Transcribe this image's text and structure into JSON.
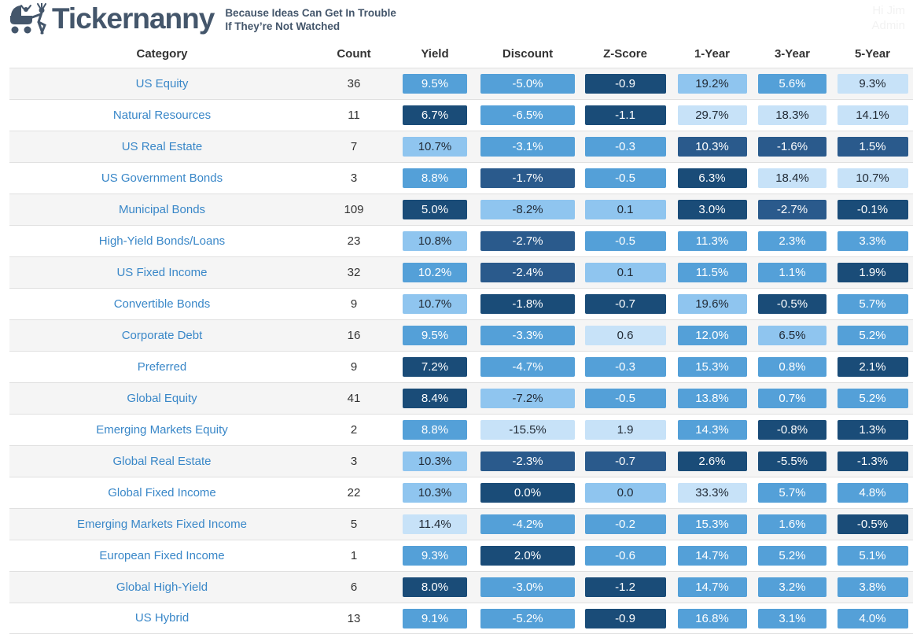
{
  "header": {
    "brand": "Tickernanny",
    "tagline_line1": "Because Ideas Can Get In Trouble",
    "tagline_line2": "If They’re Not Watched",
    "greeting": "Hi Jim",
    "role": "Admin"
  },
  "colors": {
    "shade1": "#c7e2f8",
    "shade2": "#8fc5ef",
    "shade3": "#54a0d8",
    "shade4": "#2a5a8c",
    "shade5": "#1a4c78",
    "pill_text_dark": "#222b36",
    "pill_text_light": "#ffffff",
    "link_blue": "#3987c8",
    "brand_slate": "#44566b"
  },
  "chart_data": {
    "type": "table",
    "title": "Tickernanny category heatmap table",
    "columns": [
      "Category",
      "Count",
      "Yield",
      "Discount",
      "Z-Score",
      "1-Year",
      "3-Year",
      "5-Year"
    ],
    "note": "shade scale 1=lightest blue .. 5=darkest navy"
  },
  "table": {
    "columns": [
      {
        "label": "Category"
      },
      {
        "label": "Count"
      },
      {
        "label": "Yield"
      },
      {
        "label": "Discount"
      },
      {
        "label": "Z-Score"
      },
      {
        "label": "1-Year"
      },
      {
        "label": "3-Year"
      },
      {
        "label": "5-Year"
      }
    ],
    "rows": [
      {
        "category": "US Equity",
        "count": "36",
        "metrics": [
          {
            "v": "9.5%",
            "s": 3
          },
          {
            "v": "-5.0%",
            "s": 3
          },
          {
            "v": "-0.9",
            "s": 5
          },
          {
            "v": "19.2%",
            "s": 2
          },
          {
            "v": "5.6%",
            "s": 3
          },
          {
            "v": "9.3%",
            "s": 1
          }
        ]
      },
      {
        "category": "Natural Resources",
        "count": "11",
        "metrics": [
          {
            "v": "6.7%",
            "s": 5
          },
          {
            "v": "-6.5%",
            "s": 3
          },
          {
            "v": "-1.1",
            "s": 5
          },
          {
            "v": "29.7%",
            "s": 1
          },
          {
            "v": "18.3%",
            "s": 1
          },
          {
            "v": "14.1%",
            "s": 1
          }
        ]
      },
      {
        "category": "US Real Estate",
        "count": "7",
        "metrics": [
          {
            "v": "10.7%",
            "s": 2
          },
          {
            "v": "-3.1%",
            "s": 3
          },
          {
            "v": "-0.3",
            "s": 3
          },
          {
            "v": "10.3%",
            "s": 4
          },
          {
            "v": "-1.6%",
            "s": 4
          },
          {
            "v": "1.5%",
            "s": 4
          }
        ]
      },
      {
        "category": "US Government Bonds",
        "count": "3",
        "metrics": [
          {
            "v": "8.8%",
            "s": 3
          },
          {
            "v": "-1.7%",
            "s": 4
          },
          {
            "v": "-0.5",
            "s": 3
          },
          {
            "v": "6.3%",
            "s": 5
          },
          {
            "v": "18.4%",
            "s": 1
          },
          {
            "v": "10.7%",
            "s": 1
          }
        ]
      },
      {
        "category": "Municipal Bonds",
        "count": "109",
        "metrics": [
          {
            "v": "5.0%",
            "s": 5
          },
          {
            "v": "-8.2%",
            "s": 2
          },
          {
            "v": "0.1",
            "s": 2
          },
          {
            "v": "3.0%",
            "s": 5
          },
          {
            "v": "-2.7%",
            "s": 4
          },
          {
            "v": "-0.1%",
            "s": 5
          }
        ]
      },
      {
        "category": "High-Yield Bonds/Loans",
        "count": "23",
        "metrics": [
          {
            "v": "10.8%",
            "s": 2
          },
          {
            "v": "-2.7%",
            "s": 4
          },
          {
            "v": "-0.5",
            "s": 3
          },
          {
            "v": "11.3%",
            "s": 3
          },
          {
            "v": "2.3%",
            "s": 3
          },
          {
            "v": "3.3%",
            "s": 3
          }
        ]
      },
      {
        "category": "US Fixed Income",
        "count": "32",
        "metrics": [
          {
            "v": "10.2%",
            "s": 3
          },
          {
            "v": "-2.4%",
            "s": 4
          },
          {
            "v": "0.1",
            "s": 2
          },
          {
            "v": "11.5%",
            "s": 3
          },
          {
            "v": "1.1%",
            "s": 3
          },
          {
            "v": "1.9%",
            "s": 5
          }
        ]
      },
      {
        "category": "Convertible Bonds",
        "count": "9",
        "metrics": [
          {
            "v": "10.7%",
            "s": 2
          },
          {
            "v": "-1.8%",
            "s": 5
          },
          {
            "v": "-0.7",
            "s": 5
          },
          {
            "v": "19.6%",
            "s": 2
          },
          {
            "v": "-0.5%",
            "s": 5
          },
          {
            "v": "5.7%",
            "s": 3
          }
        ]
      },
      {
        "category": "Corporate Debt",
        "count": "16",
        "metrics": [
          {
            "v": "9.5%",
            "s": 3
          },
          {
            "v": "-3.3%",
            "s": 3
          },
          {
            "v": "0.6",
            "s": 1
          },
          {
            "v": "12.0%",
            "s": 3
          },
          {
            "v": "6.5%",
            "s": 2
          },
          {
            "v": "5.2%",
            "s": 3
          }
        ]
      },
      {
        "category": "Preferred",
        "count": "9",
        "metrics": [
          {
            "v": "7.2%",
            "s": 5
          },
          {
            "v": "-4.7%",
            "s": 3
          },
          {
            "v": "-0.3",
            "s": 3
          },
          {
            "v": "15.3%",
            "s": 3
          },
          {
            "v": "0.8%",
            "s": 3
          },
          {
            "v": "2.1%",
            "s": 5
          }
        ]
      },
      {
        "category": "Global Equity",
        "count": "41",
        "metrics": [
          {
            "v": "8.4%",
            "s": 5
          },
          {
            "v": "-7.2%",
            "s": 2
          },
          {
            "v": "-0.5",
            "s": 3
          },
          {
            "v": "13.8%",
            "s": 3
          },
          {
            "v": "0.7%",
            "s": 3
          },
          {
            "v": "5.2%",
            "s": 3
          }
        ]
      },
      {
        "category": "Emerging Markets Equity",
        "count": "2",
        "metrics": [
          {
            "v": "8.8%",
            "s": 3
          },
          {
            "v": "-15.5%",
            "s": 1
          },
          {
            "v": "1.9",
            "s": 1
          },
          {
            "v": "14.3%",
            "s": 3
          },
          {
            "v": "-0.8%",
            "s": 5
          },
          {
            "v": "1.3%",
            "s": 5
          }
        ]
      },
      {
        "category": "Global Real Estate",
        "count": "3",
        "metrics": [
          {
            "v": "10.3%",
            "s": 2
          },
          {
            "v": "-2.3%",
            "s": 4
          },
          {
            "v": "-0.7",
            "s": 4
          },
          {
            "v": "2.6%",
            "s": 5
          },
          {
            "v": "-5.5%",
            "s": 5
          },
          {
            "v": "-1.3%",
            "s": 5
          }
        ]
      },
      {
        "category": "Global Fixed Income",
        "count": "22",
        "metrics": [
          {
            "v": "10.3%",
            "s": 2
          },
          {
            "v": "0.0%",
            "s": 5
          },
          {
            "v": "0.0",
            "s": 2
          },
          {
            "v": "33.3%",
            "s": 1
          },
          {
            "v": "5.7%",
            "s": 3
          },
          {
            "v": "4.8%",
            "s": 3
          }
        ]
      },
      {
        "category": "Emerging Markets Fixed Income",
        "count": "5",
        "metrics": [
          {
            "v": "11.4%",
            "s": 1
          },
          {
            "v": "-4.2%",
            "s": 3
          },
          {
            "v": "-0.2",
            "s": 3
          },
          {
            "v": "15.3%",
            "s": 3
          },
          {
            "v": "1.6%",
            "s": 3
          },
          {
            "v": "-0.5%",
            "s": 5
          }
        ]
      },
      {
        "category": "European Fixed Income",
        "count": "1",
        "metrics": [
          {
            "v": "9.3%",
            "s": 3
          },
          {
            "v": "2.0%",
            "s": 5
          },
          {
            "v": "-0.6",
            "s": 3
          },
          {
            "v": "14.7%",
            "s": 3
          },
          {
            "v": "5.2%",
            "s": 3
          },
          {
            "v": "5.1%",
            "s": 3
          }
        ]
      },
      {
        "category": "Global High-Yield",
        "count": "6",
        "metrics": [
          {
            "v": "8.0%",
            "s": 5
          },
          {
            "v": "-3.0%",
            "s": 3
          },
          {
            "v": "-1.2",
            "s": 5
          },
          {
            "v": "14.7%",
            "s": 3
          },
          {
            "v": "3.2%",
            "s": 3
          },
          {
            "v": "3.8%",
            "s": 3
          }
        ]
      },
      {
        "category": "US Hybrid",
        "count": "13",
        "metrics": [
          {
            "v": "9.1%",
            "s": 3
          },
          {
            "v": "-5.2%",
            "s": 3
          },
          {
            "v": "-0.9",
            "s": 5
          },
          {
            "v": "16.8%",
            "s": 3
          },
          {
            "v": "3.1%",
            "s": 3
          },
          {
            "v": "4.0%",
            "s": 3
          }
        ]
      }
    ]
  }
}
